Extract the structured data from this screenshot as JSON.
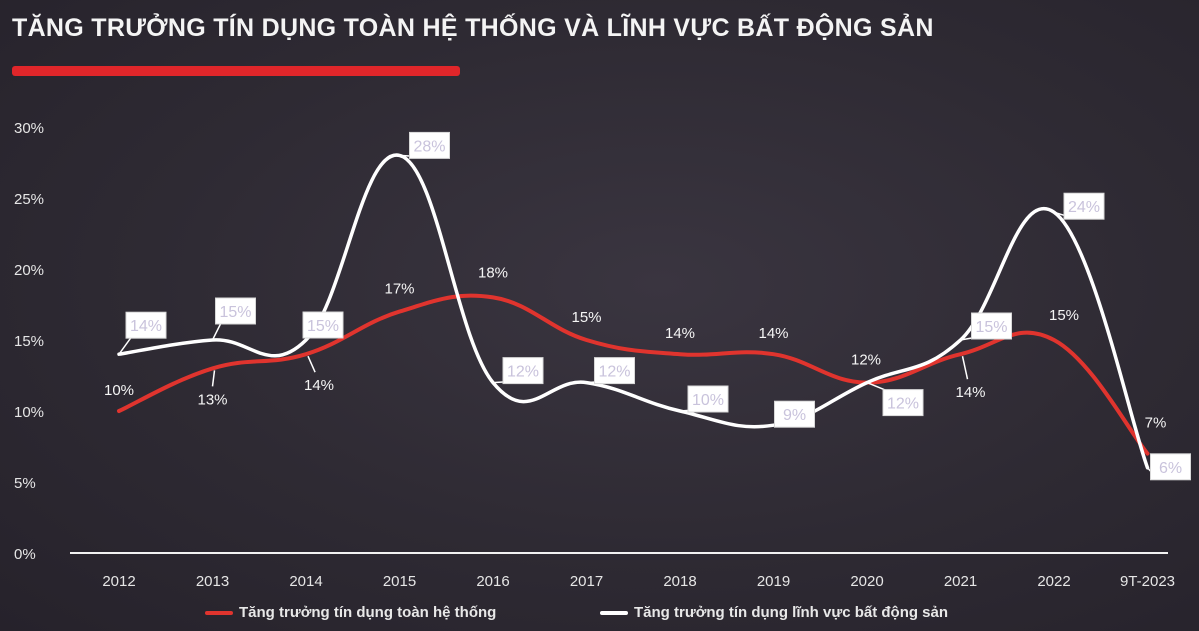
{
  "title": "Tăng trưởng tín dụng toàn hệ thống và lĩnh vực bất động sản",
  "colors": {
    "accent_red": "#e0262a",
    "series_red": "#e0342e",
    "series_white": "#ffffff",
    "background": "#2f2a33"
  },
  "chart_data": {
    "type": "line",
    "categories": [
      "2012",
      "2013",
      "2014",
      "2015",
      "2016",
      "2017",
      "2018",
      "2019",
      "2020",
      "2021",
      "2022",
      "9T-2023"
    ],
    "y_ticks": [
      "0%",
      "5%",
      "10%",
      "15%",
      "20%",
      "25%",
      "30%"
    ],
    "ylim": [
      0,
      30
    ],
    "grid": false,
    "legend_position": "bottom",
    "series": [
      {
        "name": "Tăng trưởng tín dụng toàn hệ thống",
        "values": [
          10,
          13,
          14,
          17,
          18,
          15,
          14,
          14,
          12,
          14,
          15,
          7
        ],
        "labels": [
          "10%",
          "13%",
          "14%",
          "17%",
          "18%",
          "15%",
          "14%",
          "14%",
          "12%",
          "14%",
          "15%",
          "7%"
        ]
      },
      {
        "name": "Tăng trưởng tín dụng lĩnh vực bất động sản",
        "values": [
          14,
          15,
          15,
          28,
          12,
          12,
          10,
          9,
          12,
          15,
          24,
          6
        ],
        "labels": [
          "14%",
          "15%",
          "15%",
          "28%",
          "12%",
          "12%",
          "10%",
          "9%",
          "12%",
          "15%",
          "24%",
          "6%"
        ]
      }
    ]
  }
}
